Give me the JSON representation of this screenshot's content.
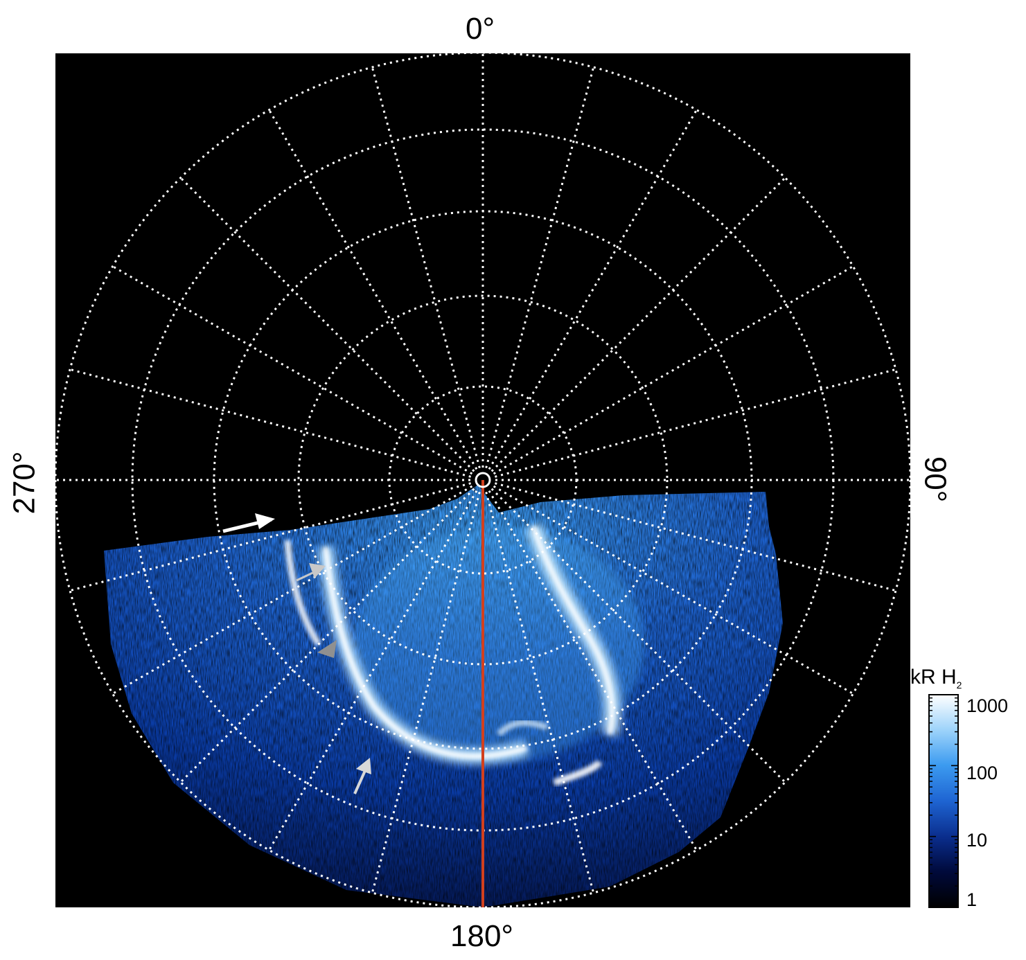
{
  "map": {
    "longitude_labels": {
      "top": "0°",
      "right": "90°",
      "bottom": "180°",
      "left": "270°"
    },
    "meridian_spacing_deg": 15,
    "latitude_rings": 5,
    "reference_meridian_color": "#d2401e",
    "grid_color": "#ffffff",
    "background_color": "#000000"
  },
  "colorbar": {
    "title_main": "kR H",
    "title_sub": "2",
    "scale": "log",
    "range": [
      1,
      1000
    ],
    "tick_labels": [
      "1000",
      "100",
      "10",
      "1"
    ],
    "colors": [
      "#000000",
      "#000a3c",
      "#0a2d8c",
      "#1e64d2",
      "#3c9bf0",
      "#9bd2fa",
      "#ffffff"
    ]
  },
  "annotations": {
    "arrow_colors": [
      "#ffffff",
      "#c8c8c8",
      "#909090",
      "#d8d8d8"
    ]
  }
}
